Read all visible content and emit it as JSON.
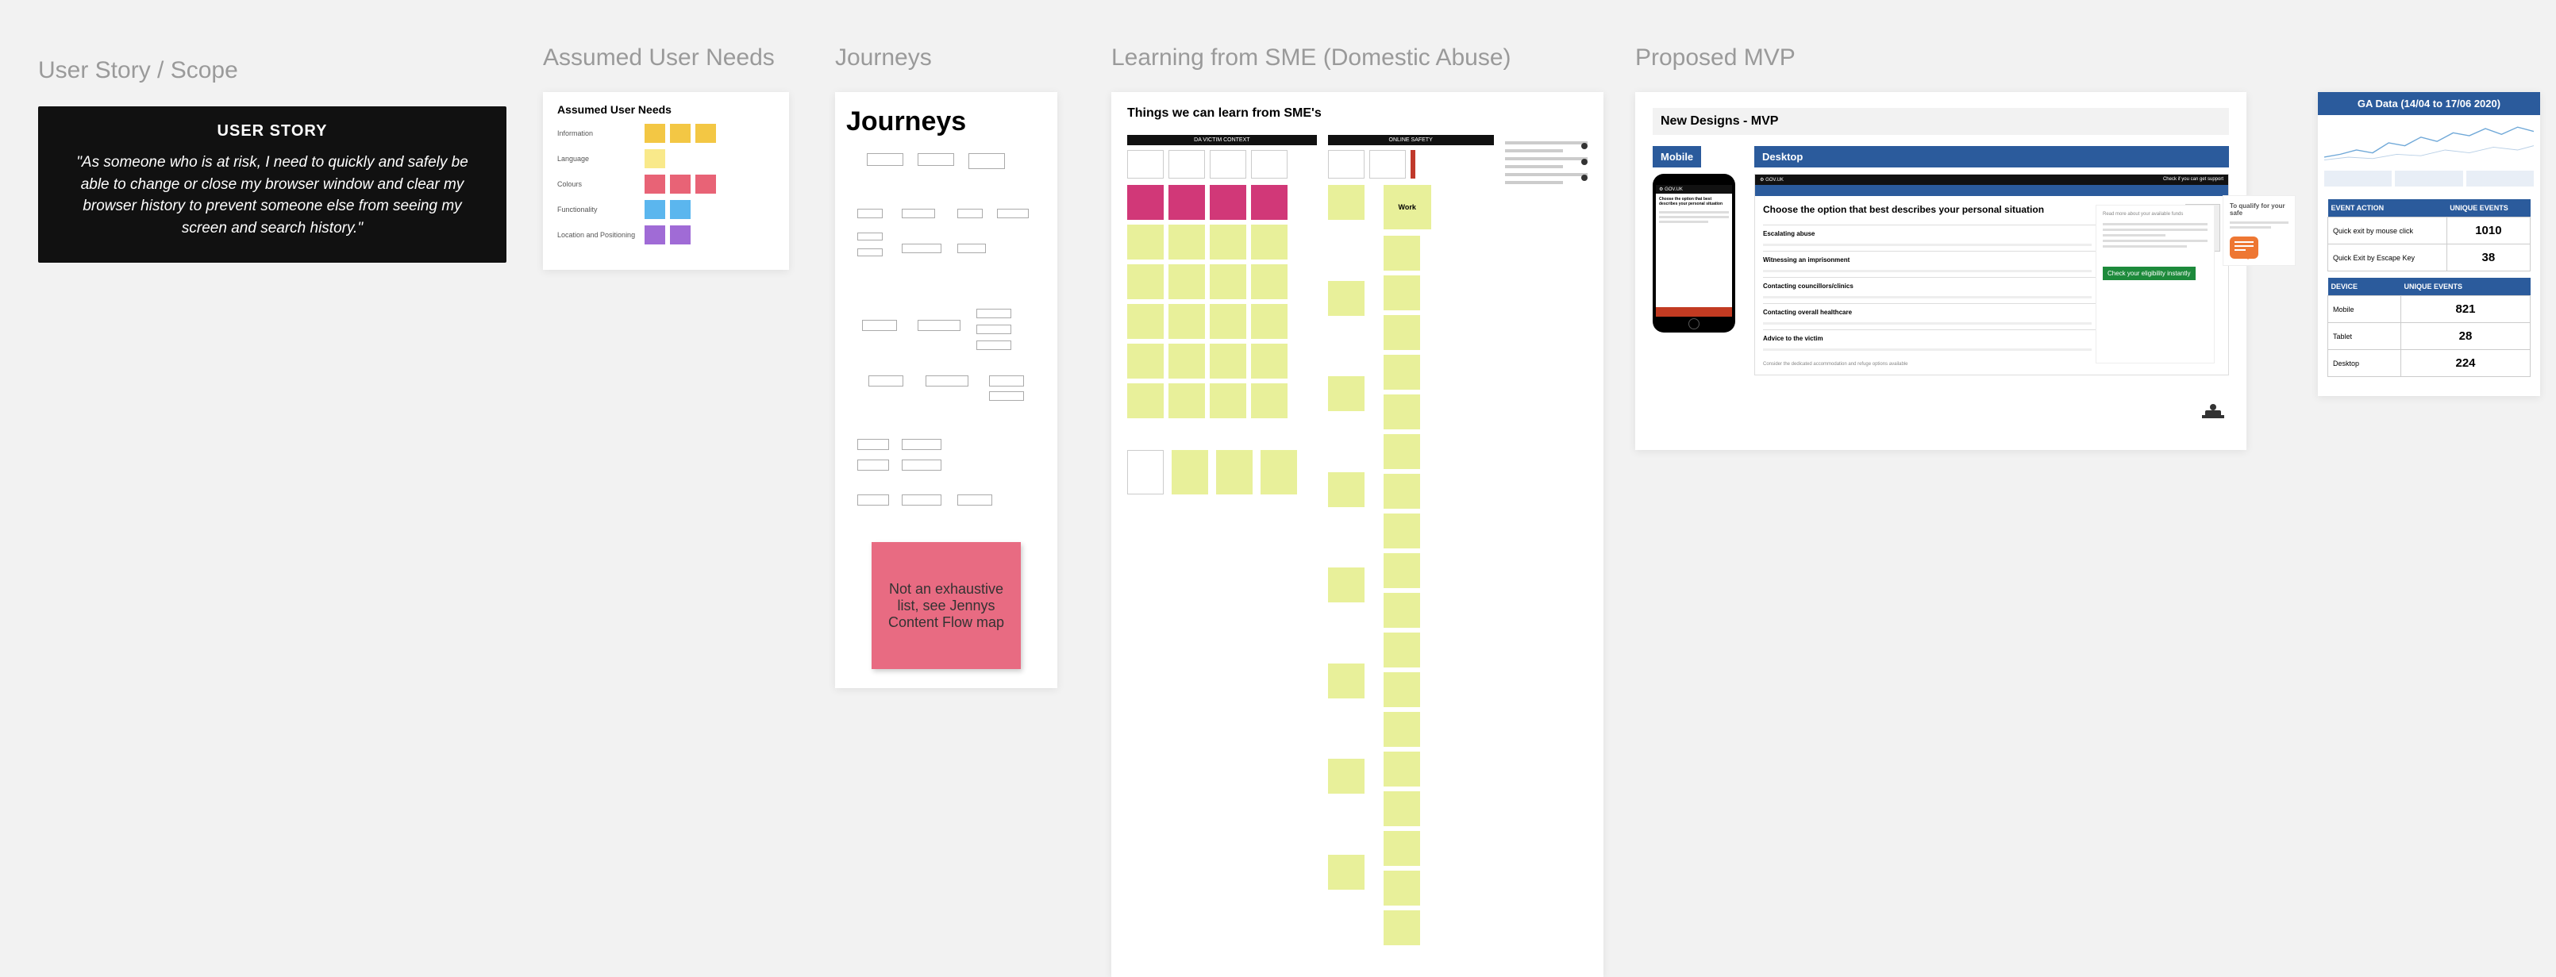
{
  "sections": {
    "user_story": "User Story / Scope",
    "needs": "Assumed User Needs",
    "journeys": "Journeys",
    "sme": "Learning from SME (Domestic Abuse)",
    "mvp": "Proposed MVP"
  },
  "user_story": {
    "heading": "USER STORY",
    "body": "\"As someone who is at risk, I need to quickly and safely be able to change or close my browser window and clear my browser history to prevent someone else from seeing my screen and search history.\""
  },
  "needs": {
    "title": "Assumed User Needs",
    "rows": [
      {
        "label": "Information",
        "swatches": [
          "#f3c744",
          "#f3c744",
          "#f3c744"
        ]
      },
      {
        "label": "Language",
        "swatches": [
          "#f9e98a"
        ]
      },
      {
        "label": "Colours",
        "swatches": [
          "#e86376",
          "#e86376",
          "#e86376"
        ]
      },
      {
        "label": "Functionality",
        "swatches": [
          "#5bb6ee",
          "#5bb6ee"
        ]
      },
      {
        "label": "Location and Positioning",
        "swatches": [
          "#a06bd6",
          "#a06bd6"
        ]
      }
    ]
  },
  "journeys": {
    "title": "Journeys",
    "sticky": "Not an exhaustive list, see Jennys Content Flow map"
  },
  "sme": {
    "title": "Things we can learn from SME's",
    "col1_header": "DA VICTIM CONTEXT",
    "col2_header": "ONLINE SAFETY",
    "work_label": "Work",
    "sticky_color_yellow": "#e8f09a",
    "sticky_color_magenta": "#d13878"
  },
  "mvp": {
    "band_title": "New Designs - MVP",
    "mobile_tab": "Mobile",
    "desktop_tab": "Desktop",
    "gov_label": "GOV.UK",
    "phone_heading": "Choose the option that best describes your personal situation",
    "desk_heading": "Choose the option that best describes your personal situation",
    "accordion": [
      "Escalating abuse",
      "Witnessing an imprisonment",
      "Contacting councillors/clinics",
      "Contacting overall healthcare",
      "Advice to the victim"
    ],
    "side_heading": "To qualify for your safe",
    "green_btn": "Check your eligibility instantly",
    "desk_topbar_right": "Check if you can get support"
  },
  "ga": {
    "header": "GA Data (14/04 to 17/06 2020)",
    "spark_color": "#6fa8d8",
    "table1": {
      "cols": [
        "EVENT ACTION",
        "UNIQUE EVENTS"
      ],
      "rows": [
        [
          "Quick exit by mouse click",
          "1010"
        ],
        [
          "Quick Exit by Escape Key",
          "38"
        ]
      ]
    },
    "table2": {
      "cols": [
        "DEVICE",
        "UNIQUE EVENTS"
      ],
      "rows": [
        [
          "Mobile",
          "821"
        ],
        [
          "Tablet",
          "28"
        ],
        [
          "Desktop",
          "224"
        ]
      ]
    }
  },
  "colors": {
    "section_title": "#9a9a9a",
    "primary_blue": "#2b5b9c",
    "sticky_pink": "#e86b82",
    "green": "#1d8a3b",
    "orange": "#ee7733"
  }
}
